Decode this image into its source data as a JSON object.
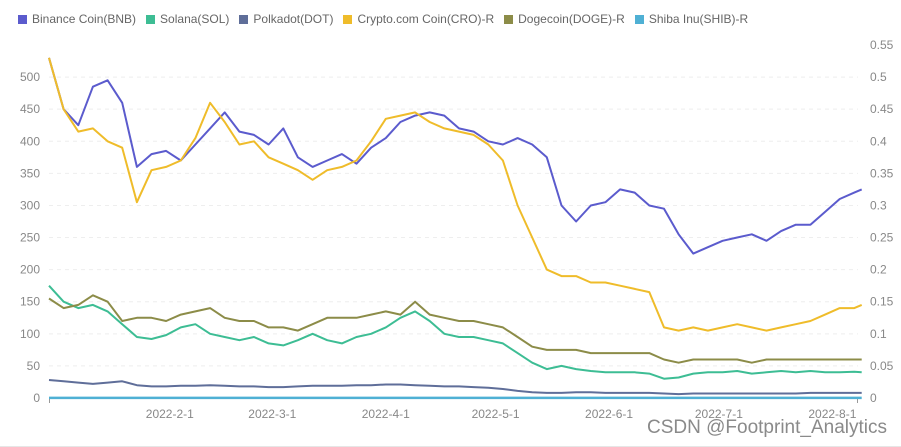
{
  "chart_data": {
    "type": "line",
    "title": "",
    "xlabel": "",
    "ylabel": "",
    "y_left": {
      "ticks": [
        0,
        50,
        100,
        150,
        200,
        250,
        300,
        350,
        400,
        450,
        500
      ],
      "range": [
        0,
        550
      ]
    },
    "y_right": {
      "ticks": [
        "0",
        "0.05",
        "0.1",
        "0.15",
        "0.2",
        "0.25",
        "0.3",
        "0.35",
        "0.4",
        "0.45",
        "0.5",
        "0.55"
      ],
      "range": [
        0,
        0.55
      ]
    },
    "x_range": [
      "2021-12-30",
      "2022-08-08"
    ],
    "x_ticks": [
      {
        "label": "2022-2-1",
        "date": "2022-02-01"
      },
      {
        "label": "2022-3-1",
        "date": "2022-03-01"
      },
      {
        "label": "2022-4-1",
        "date": "2022-04-01"
      },
      {
        "label": "2022-5-1",
        "date": "2022-05-01"
      },
      {
        "label": "2022-6-1",
        "date": "2022-06-01"
      },
      {
        "label": "2022-7-1",
        "date": "2022-07-01"
      },
      {
        "label": "2022-8-1",
        "date": "2022-08-01"
      }
    ],
    "grid": true,
    "legend_position": "top-left",
    "x_day_offsets": [
      0,
      4,
      8,
      12,
      16,
      20,
      24,
      28,
      32,
      36,
      40,
      44,
      48,
      52,
      56,
      60,
      64,
      68,
      72,
      76,
      80,
      84,
      88,
      92,
      96,
      100,
      104,
      108,
      112,
      116,
      120,
      124,
      128,
      132,
      136,
      140,
      144,
      148,
      152,
      156,
      160,
      164,
      168,
      172,
      176,
      180,
      184,
      188,
      192,
      196,
      200,
      204,
      208,
      212,
      216,
      220,
      222
    ],
    "series": [
      {
        "name": "Binance Coin(BNB)",
        "axis": "left",
        "color": "#5b5bcd",
        "values": [
          530,
          450,
          425,
          485,
          495,
          460,
          360,
          380,
          385,
          370,
          395,
          420,
          445,
          415,
          410,
          395,
          420,
          375,
          360,
          370,
          380,
          365,
          390,
          405,
          430,
          440,
          445,
          440,
          420,
          415,
          400,
          395,
          405,
          395,
          375,
          300,
          275,
          300,
          305,
          325,
          320,
          300,
          295,
          255,
          225,
          235,
          245,
          250,
          255,
          245,
          260,
          270,
          270,
          290,
          310,
          320,
          325
        ]
      },
      {
        "name": "Solana(SOL)",
        "axis": "left",
        "color": "#3dbd94",
        "values": [
          175,
          150,
          140,
          145,
          135,
          115,
          95,
          92,
          98,
          110,
          115,
          100,
          95,
          90,
          95,
          85,
          82,
          90,
          100,
          90,
          85,
          95,
          100,
          110,
          125,
          135,
          120,
          100,
          95,
          95,
          90,
          85,
          70,
          55,
          45,
          50,
          45,
          42,
          40,
          40,
          40,
          38,
          30,
          32,
          38,
          40,
          40,
          42,
          38,
          40,
          42,
          40,
          42,
          40,
          40,
          41,
          40
        ]
      },
      {
        "name": "Polkadot(DOT)",
        "axis": "left",
        "color": "#5f6e99",
        "values": [
          28,
          26,
          24,
          22,
          24,
          26,
          20,
          18,
          18,
          19,
          19,
          20,
          19,
          18,
          18,
          17,
          17,
          18,
          19,
          19,
          19,
          20,
          20,
          21,
          21,
          20,
          19,
          18,
          18,
          17,
          16,
          14,
          11,
          9,
          8,
          8,
          9,
          9,
          8,
          8,
          8,
          8,
          7,
          6,
          7,
          7,
          7,
          7,
          7,
          7,
          7,
          7,
          8,
          8,
          8,
          8,
          8
        ]
      },
      {
        "name": "Crypto.com Coin(CRO)-R",
        "axis": "right",
        "color": "#efbc2a",
        "values": [
          0.53,
          0.45,
          0.415,
          0.42,
          0.4,
          0.39,
          0.305,
          0.355,
          0.36,
          0.37,
          0.405,
          0.46,
          0.43,
          0.395,
          0.4,
          0.375,
          0.365,
          0.355,
          0.34,
          0.355,
          0.36,
          0.37,
          0.4,
          0.435,
          0.44,
          0.445,
          0.43,
          0.42,
          0.415,
          0.41,
          0.395,
          0.37,
          0.3,
          0.25,
          0.2,
          0.19,
          0.19,
          0.18,
          0.18,
          0.175,
          0.17,
          0.165,
          0.11,
          0.105,
          0.11,
          0.105,
          0.11,
          0.115,
          0.11,
          0.105,
          0.11,
          0.115,
          0.12,
          0.13,
          0.14,
          0.14,
          0.145
        ]
      },
      {
        "name": "Dogecoin(DOGE)-R",
        "axis": "right",
        "color": "#8c8c48",
        "values": [
          0.155,
          0.14,
          0.145,
          0.16,
          0.15,
          0.12,
          0.125,
          0.125,
          0.12,
          0.13,
          0.135,
          0.14,
          0.125,
          0.12,
          0.12,
          0.11,
          0.11,
          0.105,
          0.115,
          0.125,
          0.125,
          0.125,
          0.13,
          0.135,
          0.13,
          0.15,
          0.13,
          0.125,
          0.12,
          0.12,
          0.115,
          0.11,
          0.095,
          0.08,
          0.075,
          0.075,
          0.075,
          0.07,
          0.07,
          0.07,
          0.07,
          0.07,
          0.06,
          0.055,
          0.06,
          0.06,
          0.06,
          0.06,
          0.055,
          0.06,
          0.06,
          0.06,
          0.06,
          0.06,
          0.06,
          0.06,
          0.06
        ]
      },
      {
        "name": "Shiba Inu(SHIB)-R",
        "axis": "right",
        "color": "#4fb0d4",
        "values": [
          0.0001,
          0.0001,
          0.0001,
          0.0001,
          0.0001,
          0.0001,
          0.0001,
          0.0001,
          0.0001,
          0.0001,
          0.0001,
          0.0001,
          0.0001,
          0.0001,
          0.0001,
          0.0001,
          0.0001,
          0.0001,
          0.0001,
          0.0001,
          0.0001,
          0.0001,
          0.0001,
          0.0001,
          0.0001,
          0.0001,
          0.0001,
          0.0001,
          0.0001,
          0.0001,
          0.0001,
          0.0001,
          0.0001,
          0.0001,
          0.0001,
          0.0001,
          0.0001,
          0.0001,
          0.0001,
          0.0001,
          0.0001,
          0.0001,
          0.0001,
          0.0001,
          0.0001,
          0.0001,
          0.0001,
          0.0001,
          0.0001,
          0.0001,
          0.0001,
          0.0001,
          0.0001,
          0.0001,
          0.0001,
          0.0001,
          0.0001
        ]
      }
    ]
  },
  "watermark": "CSDN @Footprint_Analytics"
}
